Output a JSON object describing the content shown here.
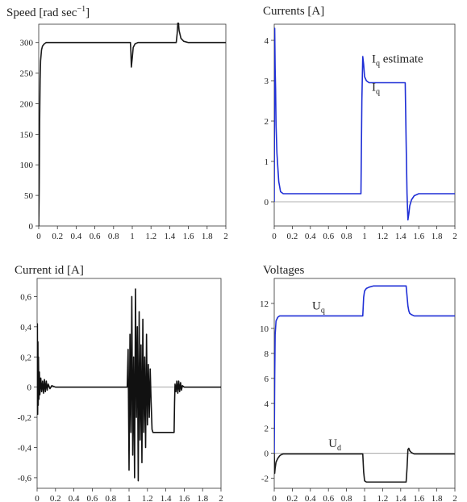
{
  "chart_data": [
    {
      "type": "line",
      "title": "Speed [rad sec",
      "title_sup": "−1",
      "title_end": "]",
      "xlabel": "",
      "ylabel": "",
      "xlim": [
        0,
        2
      ],
      "ylim": [
        0,
        330
      ],
      "xticks": [
        0,
        0.2,
        0.4,
        0.6,
        0.8,
        1,
        1.2,
        1.4,
        1.6,
        1.8,
        2
      ],
      "xtick_labels": [
        "0",
        "0.2",
        "0.4",
        "0.6",
        "0.8",
        "1",
        "1.2",
        "1.4",
        "1.6",
        "1.8",
        "2"
      ],
      "yticks": [
        0,
        50,
        100,
        150,
        200,
        250,
        300
      ],
      "ytick_labels": [
        "0",
        "50",
        "100",
        "150",
        "200",
        "250",
        "300"
      ],
      "zero_line": false,
      "series": [
        {
          "color": "#1a1a1a",
          "x": [
            0,
            0.005,
            0.01,
            0.015,
            0.02,
            0.03,
            0.04,
            0.06,
            0.08,
            0.1,
            0.2,
            0.5,
            0.98,
            0.985,
            0.99,
            1.0,
            1.01,
            1.03,
            1.06,
            1.1,
            1.4,
            1.47,
            1.48,
            1.49,
            1.5,
            1.52,
            1.55,
            1.6,
            1.7,
            2.0
          ],
          "y": [
            0,
            60,
            170,
            240,
            270,
            288,
            294,
            298,
            300,
            300,
            300,
            300,
            300,
            285,
            260,
            275,
            292,
            298,
            300,
            300,
            300,
            300,
            315,
            340,
            320,
            307,
            302,
            300,
            300,
            300
          ]
        }
      ]
    },
    {
      "type": "line",
      "title": "Currents [A]",
      "xlabel": "",
      "ylabel": "",
      "xlim": [
        0,
        2
      ],
      "ylim": [
        -0.6,
        4.4
      ],
      "xticks": [
        0,
        0.2,
        0.4,
        0.6,
        0.8,
        1,
        1.2,
        1.4,
        1.6,
        1.8,
        2
      ],
      "xtick_labels": [
        "0",
        "0.2",
        "0.4",
        "0.6",
        "0.8",
        "1",
        "1.2",
        "1.4",
        "1.6",
        "1.8",
        "2"
      ],
      "yticks": [
        0,
        1,
        2,
        3,
        4
      ],
      "ytick_labels": [
        "0",
        "1",
        "2",
        "3",
        "4"
      ],
      "zero_line": true,
      "annotations": [
        {
          "text": "I",
          "sub": "q",
          "rest": " estimate",
          "x": 1.08,
          "y": 3.45
        },
        {
          "text": "I",
          "sub": "q",
          "rest": "",
          "x": 1.08,
          "y": 2.75
        }
      ],
      "series": [
        {
          "color": "#1f2fd6",
          "x": [
            0,
            0.005,
            0.01,
            0.015,
            0.02,
            0.03,
            0.05,
            0.07,
            0.1,
            0.15,
            0.3,
            0.96,
            0.97,
            0.98,
            0.99,
            1.0,
            1.02,
            1.05,
            1.1,
            1.2,
            1.45,
            1.46,
            1.47,
            1.48,
            1.49,
            1.5,
            1.52,
            1.55,
            1.6,
            1.7,
            2.0
          ],
          "y": [
            0,
            4.3,
            3.3,
            2.8,
            1.9,
            1.2,
            0.5,
            0.25,
            0.2,
            0.2,
            0.2,
            0.2,
            2.5,
            3.6,
            3.4,
            3.1,
            3.0,
            2.95,
            2.95,
            2.95,
            2.95,
            1.5,
            0.2,
            -0.45,
            -0.3,
            -0.1,
            0.05,
            0.15,
            0.2,
            0.2,
            0.2
          ]
        }
      ]
    },
    {
      "type": "line",
      "title": "Current id [A]",
      "xlabel": "",
      "ylabel": "",
      "xlim": [
        0,
        2
      ],
      "ylim": [
        -0.67,
        0.72
      ],
      "xticks": [
        0,
        0.2,
        0.4,
        0.6,
        0.8,
        1,
        1.2,
        1.4,
        1.6,
        1.8,
        2
      ],
      "xtick_labels": [
        "0",
        "0.2",
        "0.4",
        "0.6",
        "0.8",
        "1",
        "1.2",
        "1.4",
        "1.6",
        "1.8",
        "2"
      ],
      "yticks": [
        -0.6,
        -0.4,
        -0.2,
        0,
        0.2,
        0.4,
        0.6
      ],
      "ytick_labels": [
        "-0,6",
        "-0,4",
        "-0,2",
        "0",
        "0,2",
        "0,4",
        "0,6"
      ],
      "zero_line": true,
      "series": [
        {
          "color": "#111111",
          "x": [
            0,
            0.003,
            0.006,
            0.009,
            0.012,
            0.015,
            0.02,
            0.025,
            0.03,
            0.04,
            0.05,
            0.06,
            0.07,
            0.08,
            0.09,
            0.1,
            0.11,
            0.12,
            0.14,
            0.16,
            0.2,
            0.5,
            0.98,
            0.99,
            1.0,
            1.01,
            1.02,
            1.03,
            1.04,
            1.05,
            1.06,
            1.07,
            1.08,
            1.09,
            1.1,
            1.11,
            1.12,
            1.13,
            1.14,
            1.15,
            1.16,
            1.17,
            1.18,
            1.19,
            1.2,
            1.21,
            1.22,
            1.23,
            1.24,
            1.25,
            1.26,
            1.3,
            1.4,
            1.49,
            1.495,
            1.5,
            1.51,
            1.52,
            1.53,
            1.54,
            1.55,
            1.56,
            1.57,
            1.58,
            1.6,
            1.65,
            2.0
          ],
          "y": [
            0,
            0.42,
            -0.18,
            0.3,
            -0.12,
            0.2,
            -0.08,
            0.1,
            -0.05,
            0.06,
            -0.03,
            0.04,
            -0.04,
            0.05,
            -0.03,
            0.04,
            -0.02,
            0.02,
            -0.01,
            0.01,
            0,
            0,
            0,
            0.25,
            -0.55,
            0.35,
            -0.3,
            0.6,
            -0.45,
            0.2,
            -0.6,
            0.65,
            -0.2,
            0.4,
            -0.62,
            0.5,
            -0.35,
            0.28,
            -0.5,
            0.45,
            -0.3,
            0.2,
            -0.4,
            0.35,
            -0.25,
            0.15,
            -0.2,
            0.12,
            -0.1,
            -0.28,
            -0.3,
            -0.3,
            -0.3,
            -0.3,
            -0.1,
            0.02,
            -0.03,
            0.04,
            -0.04,
            0.04,
            -0.03,
            0.03,
            -0.02,
            0.01,
            0,
            0,
            0
          ]
        }
      ]
    },
    {
      "type": "line",
      "title": "Voltages",
      "xlabel": "",
      "ylabel": "",
      "xlim": [
        0,
        2
      ],
      "ylim": [
        -2.8,
        14
      ],
      "xticks": [
        0,
        0.2,
        0.4,
        0.6,
        0.8,
        1,
        1.2,
        1.4,
        1.6,
        1.8,
        2
      ],
      "xtick_labels": [
        "0",
        "0.2",
        "0.4",
        "0.6",
        "0.8",
        "1",
        "1.2",
        "1.4",
        "1.6",
        "1.8",
        "2"
      ],
      "yticks": [
        -2,
        0,
        2,
        4,
        6,
        8,
        10,
        12
      ],
      "ytick_labels": [
        "-2",
        "0",
        "2",
        "4",
        "6",
        "8",
        "10",
        "12"
      ],
      "zero_line": true,
      "annotations": [
        {
          "text": "U",
          "sub": "q",
          "rest": "",
          "x": 0.42,
          "y": 11.5
        },
        {
          "text": "U",
          "sub": "d",
          "rest": "",
          "x": 0.6,
          "y": 0.5
        }
      ],
      "series": [
        {
          "color": "#1f2fd6",
          "x": [
            0,
            0.005,
            0.01,
            0.02,
            0.04,
            0.06,
            0.08,
            0.1,
            0.3,
            0.98,
            0.99,
            1.0,
            1.02,
            1.05,
            1.1,
            1.2,
            1.46,
            1.47,
            1.48,
            1.49,
            1.5,
            1.52,
            1.55,
            1.6,
            2.0
          ],
          "y": [
            0,
            6,
            9.5,
            10.6,
            10.9,
            11.0,
            11.0,
            11.0,
            11.0,
            11.0,
            12.5,
            13.0,
            13.2,
            13.3,
            13.4,
            13.4,
            13.4,
            12.6,
            11.8,
            11.4,
            11.2,
            11.1,
            11.0,
            11.0,
            11.0
          ]
        },
        {
          "color": "#1a1a1a",
          "x": [
            0,
            0.005,
            0.01,
            0.02,
            0.04,
            0.06,
            0.08,
            0.1,
            0.2,
            0.98,
            0.99,
            1.0,
            1.02,
            1.05,
            1.46,
            1.47,
            1.48,
            1.49,
            1.5,
            1.52,
            1.55,
            1.6,
            2.0
          ],
          "y": [
            0,
            -1.6,
            -1.2,
            -0.7,
            -0.4,
            -0.2,
            -0.1,
            -0.05,
            -0.05,
            -0.05,
            -1.5,
            -2.2,
            -2.3,
            -2.3,
            -2.3,
            -1.2,
            0.3,
            0.4,
            0.2,
            0.05,
            -0.05,
            -0.05,
            -0.05
          ]
        }
      ]
    }
  ]
}
